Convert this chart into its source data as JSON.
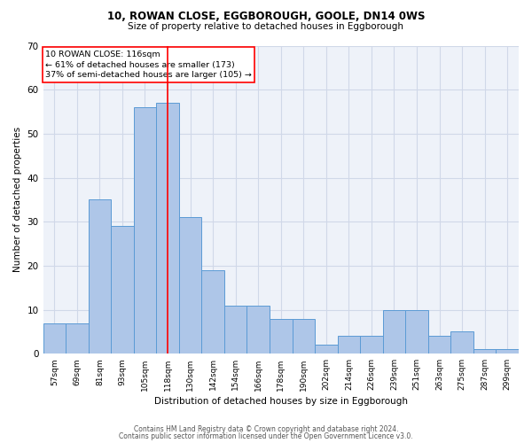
{
  "title1": "10, ROWAN CLOSE, EGGBOROUGH, GOOLE, DN14 0WS",
  "title2": "Size of property relative to detached houses in Eggborough",
  "xlabel": "Distribution of detached houses by size in Eggborough",
  "ylabel": "Number of detached properties",
  "categories": [
    "57sqm",
    "69sqm",
    "81sqm",
    "93sqm",
    "105sqm",
    "118sqm",
    "130sqm",
    "142sqm",
    "154sqm",
    "166sqm",
    "178sqm",
    "190sqm",
    "202sqm",
    "214sqm",
    "226sqm",
    "239sqm",
    "251sqm",
    "263sqm",
    "275sqm",
    "287sqm",
    "299sqm"
  ],
  "bar_values": [
    7,
    7,
    35,
    29,
    56,
    57,
    31,
    19,
    11,
    11,
    8,
    8,
    2,
    4,
    4,
    10,
    10,
    4,
    5,
    1,
    1
  ],
  "bar_color": "#aec6e8",
  "bar_edge_color": "#5b9bd5",
  "grid_color": "#d0d8e8",
  "background_color": "#eef2f9",
  "vline_color": "red",
  "annotation_text": "10 ROWAN CLOSE: 116sqm\n← 61% of detached houses are smaller (173)\n37% of semi-detached houses are larger (105) →",
  "ylim": [
    0,
    70
  ],
  "yticks": [
    0,
    10,
    20,
    30,
    40,
    50,
    60,
    70
  ],
  "footer1": "Contains HM Land Registry data © Crown copyright and database right 2024.",
  "footer2": "Contains public sector information licensed under the Open Government Licence v3.0."
}
